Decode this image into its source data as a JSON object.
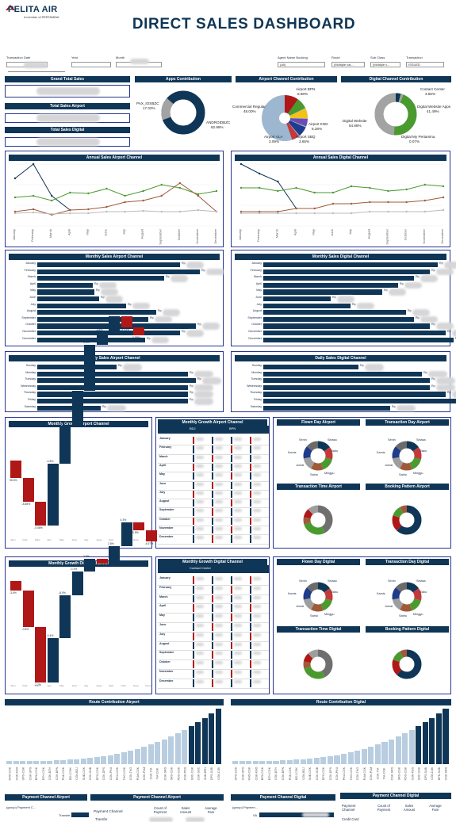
{
  "logo": {
    "name": "PELITA AIR",
    "tagline": "A member of PERTAMINA"
  },
  "title": "DIRECT SALES DASHBOARD",
  "filters": {
    "transaction_date": "Transaction Date",
    "year": "Year",
    "month": "Month",
    "agent_name_booking": "Agent Name Booking",
    "agent_value": "(All)",
    "route": "Route",
    "route_value": "(Multiple val...",
    "sub_class": "Sub Class",
    "sub_class_value": "(Multiple v...",
    "transaction": "Transaction",
    "transaction_value": "ISSUED"
  },
  "kpis": [
    "Grand Total Sales",
    "Total Sales Airport",
    "Total Sales Digital"
  ],
  "apps": {
    "title": "Apps Contribution",
    "ios_label": "PAX_IOSBZC",
    "ios_pct": "17.02%",
    "android_label": "ANDROIDBZC",
    "android_pct": "82.98%"
  },
  "airport_channel": {
    "title": "Airport Channel Contribution",
    "commercial_label": "Commercial Regular",
    "commercial_pct": "48.00%",
    "bpn_label": "Airport BPN",
    "bpn_pct": "8.88%",
    "knd_label": "Airport KND",
    "knd_pct": "8.28%",
    "vla_label": "Airport VLA",
    "vla_pct": "3.09%",
    "sbq_label": "Airport SBQ",
    "sbq_pct": "3.65%"
  },
  "digital_channel": {
    "title": "Digital Channel Contribution",
    "contact_label": "Contact Center",
    "contact_pct": "3.56%",
    "website_label": "Digital Website",
    "website_pct": "54.88%",
    "apps_label": "Digital Website Apps",
    "apps_pct": "41.49%",
    "pertamina_label": "Digital My Pertamina",
    "pertamina_pct": "0.07%"
  },
  "annual_airport": {
    "title": "Annual Sales Airport Channel"
  },
  "annual_digital": {
    "title": "Annual Sales Digital Channel"
  },
  "months": [
    "January",
    "February",
    "March",
    "April",
    "May",
    "June",
    "July",
    "August",
    "September",
    "October",
    "November",
    "December"
  ],
  "days": [
    "Sunday",
    "Monday",
    "Tuesday",
    "Wednesday",
    "Thursday",
    "Friday",
    "Saturday"
  ],
  "monthly_airport": {
    "title": "Monthly Sales Airport Channel"
  },
  "monthly_digital": {
    "title": "Monthly Sales Digital Channel"
  },
  "daily_airport": {
    "title": "Daily Sales Airport Channel"
  },
  "daily_digital": {
    "title": "Daily Sales Digital Channel"
  },
  "rp": "Rp",
  "growth_airport": {
    "title": "Monthly Growth Airport Channel",
    "labels": [
      "35.5%",
      "-8.85%",
      "-0.08%",
      "-4.8%",
      "0.05%",
      "0.35%",
      "0.0%",
      "-3.8%",
      "10.5%",
      "19.93%",
      "0.55%",
      "-8.54%"
    ]
  },
  "growth_airport_table": {
    "title": "Monthly Growth Airport Channel",
    "col1": "BDJ",
    "col2": "BPN"
  },
  "growth_digital": {
    "title": "Monthly Growth Digital Channel",
    "labels": [
      "-3.6%",
      "-0.8%",
      "-2.2%",
      "-0.4%",
      "-8.0%",
      "0.3%",
      "2.5%",
      "-4.2%",
      "2.8%",
      "4.3%",
      "0.8%",
      "-4.67%"
    ]
  },
  "growth_digital_table": {
    "title": "Monthly Growth Digital Channel",
    "col1": "Contact Center"
  },
  "flown_day_airport": {
    "title": "Flown Day Airport"
  },
  "transaction_day_airport": {
    "title": "Transaction Day Airport"
  },
  "transaction_time_airport": {
    "title": "Transaction Time Airport"
  },
  "booking_pattern_airport": {
    "title": "Booking Pattern Airport"
  },
  "flown_day_digital": {
    "title": "Flown Day Digital"
  },
  "transaction_day_digital": {
    "title": "Transaction Day Digital"
  },
  "transaction_time_digital": {
    "title": "Transaction Time Digital"
  },
  "booking_pattern_digital": {
    "title": "Booking Pattern Digital"
  },
  "day_labels": {
    "sun": "Senin",
    "mon": "Selasa",
    "tue": "Rabu",
    "wed": "Kamis",
    "thu": "Jumat",
    "fri": "Sabtu",
    "sat": "Minggu"
  },
  "route_airport": {
    "title": "Route Contribution Airport",
    "routes": [
      "KNO-CGK",
      "CGK-KNO",
      "UPG-CGK",
      "CGK-UPG",
      "BPN-CGK",
      "BTH-CGK",
      "CGK-BTH",
      "CGK-BPN",
      "PNK-CGK",
      "BDJ-CGK",
      "CGK-BDJ",
      "SUB-CGK",
      "CGK-SUB",
      "DPS-CGK",
      "CGK-DPS",
      "CGK-PKU",
      "PKU-CGK",
      "TKG-CGK",
      "CGK-TKG",
      "PLM-CGK",
      "CGK-PLM",
      "CGK-YIA",
      "YIA-CGK",
      "CGK-SRG",
      "SRG-CGK",
      "PDG-CGK",
      "CGK-PDG",
      "SOC-CGK",
      "CGK-SOC",
      "SUB-BPN",
      "DPS-SUB",
      "CGK-DJB"
    ]
  },
  "route_digital": {
    "title": "Route Contribution Digital",
    "routes": [
      "UPG-CGK",
      "CGK-UPG",
      "KNO-CGK",
      "CGK-KNO",
      "BPN-CGK",
      "BTH-CGK",
      "CGK-BTH",
      "CGK-BPN",
      "PNK-CGK",
      "BDJ-CGK",
      "CGK-BDJ",
      "SUB-CGK",
      "CGK-SUB",
      "DPS-CGK",
      "CGK-DPS",
      "CGK-PKU",
      "PKU-CGK",
      "TKG-CGK",
      "CGK-TKG",
      "PLM-CGK",
      "CGK-PLM",
      "CGK-YIA",
      "YIA-CGK",
      "CGK-SRG",
      "SRG-CGK",
      "PDG-CGK",
      "CGK-PDG",
      "SOC-CGK",
      "DPS-SUB",
      "CGK-DJB",
      "BPN-SUB",
      "CGK-SRG"
    ]
  },
  "payment_airport": {
    "title1": "Payment Channel Airport",
    "title2": "Payment Channel Airport",
    "group": "(group) Payment C...",
    "row1": "Transfer",
    "row2": "Transfer",
    "col_channel": "Payment Channel",
    "col_count": "Count of Payment",
    "col_sales": "Sales Amount",
    "col_avg": "Average Fare"
  },
  "payment_digital": {
    "title1": "Payment Channel Digital",
    "title2": "Payment Channel Digital",
    "group": "(group) Paymen...",
    "row1": "VA",
    "row2": "Credit Card",
    "col_channel": "Payment Channel",
    "col_count": "Count of Payment",
    "col_sales": "Sales Amount",
    "col_avg": "Average Fare"
  },
  "colors": {
    "navy": "#0f3656",
    "green": "#4a9a2f",
    "red": "#b01717",
    "grey": "#9e9e9e",
    "lightblue": "#9db7d1",
    "brown": "#a05a3a"
  }
}
